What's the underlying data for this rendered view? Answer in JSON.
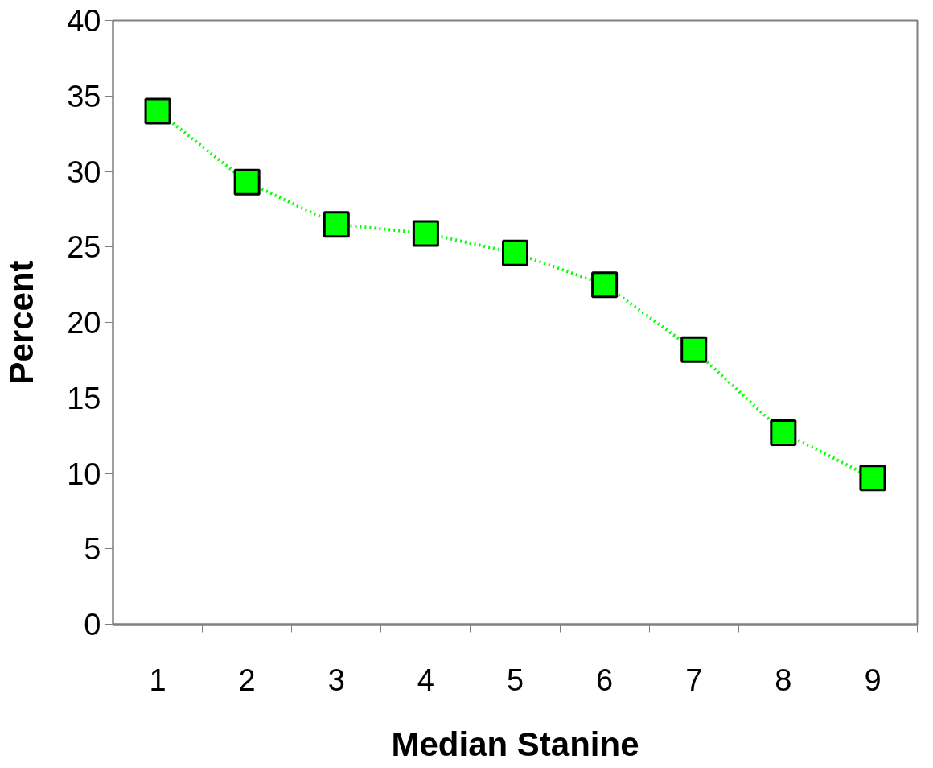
{
  "chart_data": {
    "type": "line",
    "xlabel": "Median Stanine",
    "ylabel": "Percent",
    "categories": [
      "1",
      "2",
      "3",
      "4",
      "5",
      "6",
      "7",
      "8",
      "9"
    ],
    "series": [
      {
        "color": "#00ff00",
        "values": [
          34.0,
          29.3,
          26.5,
          25.9,
          24.6,
          22.5,
          18.2,
          12.7,
          9.7
        ]
      }
    ],
    "ylim": [
      0,
      40
    ],
    "yticks": [
      0,
      5,
      10,
      15,
      20,
      25,
      30,
      35,
      40
    ],
    "marker": "square",
    "line_style": "dotted",
    "grid": false
  }
}
